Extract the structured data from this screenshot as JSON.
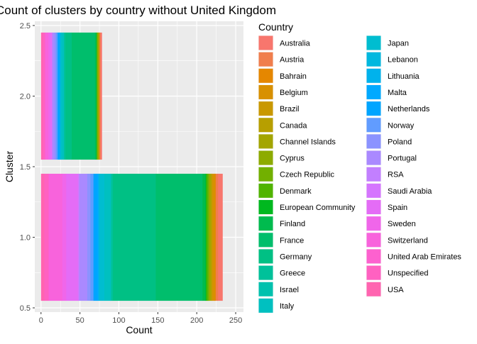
{
  "chart_data": {
    "type": "bar",
    "orientation": "horizontal",
    "stacked": true,
    "title": "Count of clusters by country without United Kingdom",
    "xlabel": "Count",
    "ylabel": "Cluster",
    "xlim": [
      -8,
      260
    ],
    "ylim": [
      0.47,
      2.53
    ],
    "xticks": [
      0,
      50,
      100,
      150,
      200,
      250
    ],
    "xtick_labels": [
      "0",
      "50",
      "100",
      "150",
      "200",
      "250"
    ],
    "yticks": [
      0.5,
      1.0,
      1.5,
      2.0,
      2.5
    ],
    "ytick_labels": [
      "0.5",
      "1.0",
      "1.5",
      "2.0",
      "2.5"
    ],
    "grid": true,
    "legend_position": "right",
    "legend_title": "Country",
    "bar_width": 0.9,
    "clusters": [
      1,
      2
    ],
    "series": [
      {
        "name": "Australia",
        "color": "#F8766D",
        "values": [
          6,
          2
        ]
      },
      {
        "name": "Austria",
        "color": "#F07E4D",
        "values": [
          3,
          1
        ]
      },
      {
        "name": "Bahrain",
        "color": "#E58700",
        "values": [
          1,
          0
        ]
      },
      {
        "name": "Belgium",
        "color": "#D89000",
        "values": [
          3,
          1
        ]
      },
      {
        "name": "Brazil",
        "color": "#C99800",
        "values": [
          1,
          0
        ]
      },
      {
        "name": "Canada",
        "color": "#B79F00",
        "values": [
          1,
          0
        ]
      },
      {
        "name": "Channel Islands",
        "color": "#A3A500",
        "values": [
          2,
          1
        ]
      },
      {
        "name": "Cyprus",
        "color": "#8DAB00",
        "values": [
          1,
          1
        ]
      },
      {
        "name": "Czech Republic",
        "color": "#72B000",
        "values": [
          1,
          0
        ]
      },
      {
        "name": "Denmark",
        "color": "#50B400",
        "values": [
          2,
          1
        ]
      },
      {
        "name": "European Community",
        "color": "#00B81F",
        "values": [
          1,
          0
        ]
      },
      {
        "name": "Finland",
        "color": "#00BB4E",
        "values": [
          4,
          2
        ]
      },
      {
        "name": "France",
        "color": "#00BE6C",
        "values": [
          60,
          30
        ]
      },
      {
        "name": "Germany",
        "color": "#00C084",
        "values": [
          55,
          8
        ]
      },
      {
        "name": "Greece",
        "color": "#00C19A",
        "values": [
          2,
          2
        ]
      },
      {
        "name": "Israel",
        "color": "#00C1AE",
        "values": [
          1,
          0
        ]
      },
      {
        "name": "Italy",
        "color": "#00C0C0",
        "values": [
          8,
          3
        ]
      },
      {
        "name": "Japan",
        "color": "#00BDD0",
        "values": [
          6,
          2
        ]
      },
      {
        "name": "Lebanon",
        "color": "#00B8DF",
        "values": [
          1,
          0
        ]
      },
      {
        "name": "Lithuania",
        "color": "#00B2EC",
        "values": [
          1,
          0
        ]
      },
      {
        "name": "Malta",
        "color": "#00A9FF",
        "values": [
          1,
          0
        ]
      },
      {
        "name": "Netherlands",
        "color": "#00A5FF",
        "values": [
          5,
          3
        ]
      },
      {
        "name": "Norway",
        "color": "#619CFF",
        "values": [
          4,
          2
        ]
      },
      {
        "name": "Poland",
        "color": "#8B93FF",
        "values": [
          4,
          2
        ]
      },
      {
        "name": "Portugal",
        "color": "#AA89FF",
        "values": [
          10,
          3
        ]
      },
      {
        "name": "RSA",
        "color": "#C27FFF",
        "values": [
          1,
          0
        ]
      },
      {
        "name": "Saudi Arabia",
        "color": "#D575FE",
        "values": [
          1,
          0
        ]
      },
      {
        "name": "Spain",
        "color": "#E46CF6",
        "values": [
          15,
          3
        ]
      },
      {
        "name": "Sweden",
        "color": "#F066EA",
        "values": [
          5,
          2
        ]
      },
      {
        "name": "Switzerland",
        "color": "#F863DC",
        "values": [
          17,
          4
        ]
      },
      {
        "name": "United Arab Emirates",
        "color": "#FD61CF",
        "values": [
          1,
          0
        ]
      },
      {
        "name": "Unspecified",
        "color": "#FF61C1",
        "values": [
          5,
          3
        ]
      },
      {
        "name": "USA",
        "color": "#FF64B0",
        "values": [
          4,
          2
        ]
      }
    ]
  }
}
